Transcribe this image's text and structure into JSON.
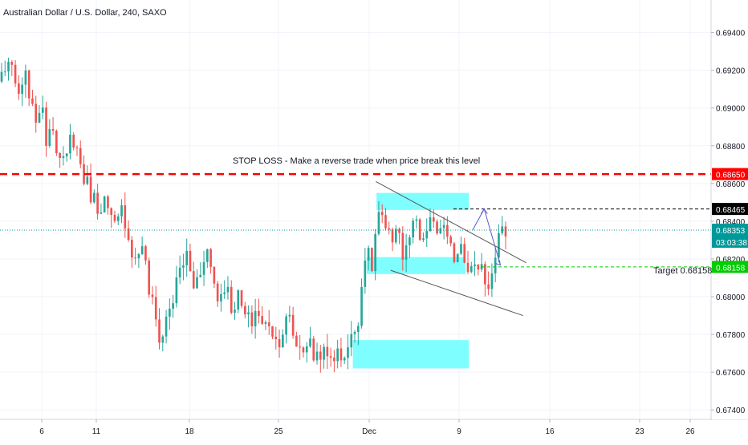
{
  "header": {
    "title": "Australian Dollar / U.S. Dollar, 240, SAXO"
  },
  "chart_data": {
    "type": "candlestick",
    "title": "Australian Dollar / U.S. Dollar, 240, SAXO",
    "symbol": "AUDUSD",
    "timeframe": "240",
    "source": "SAXO",
    "ylim": [
      0.6735,
      0.6953
    ],
    "y_ticks": [
      "0.69400",
      "0.69200",
      "0.69000",
      "0.68800",
      "0.68600",
      "0.68400",
      "0.68200",
      "0.68000",
      "0.67800",
      "0.67600",
      "0.67400"
    ],
    "x_ticks": [
      "6",
      "11",
      "18",
      "25",
      "Dec",
      "9",
      "16",
      "23",
      "26"
    ],
    "grid": true,
    "colors": {
      "up": "#26a69a",
      "down": "#ef5350",
      "stop": "#ff0000",
      "entry": "#000000",
      "target": "#00cc00",
      "last": "#009999",
      "zone": "#7ffeff",
      "arrow": "#5b5bd6"
    },
    "close_path": [
      0.6918,
      0.6925,
      0.6912,
      0.6905,
      0.6918,
      0.6892,
      0.6902,
      0.6885,
      0.6895,
      0.6872,
      0.6868,
      0.6888,
      0.6875,
      0.6862,
      0.6855,
      0.6848,
      0.6852,
      0.684,
      0.6835,
      0.6848,
      0.683,
      0.6818,
      0.683,
      0.6805,
      0.679,
      0.6775,
      0.6792,
      0.68,
      0.6815,
      0.6822,
      0.6805,
      0.6812,
      0.6828,
      0.6812,
      0.6798,
      0.6808,
      0.6795,
      0.68,
      0.679,
      0.6785,
      0.6795,
      0.6782,
      0.6788,
      0.6776,
      0.6782,
      0.6789,
      0.6776,
      0.6772,
      0.6777,
      0.6768,
      0.6772,
      0.6766,
      0.677,
      0.6768,
      0.6772,
      0.6778,
      0.6792,
      0.6825,
      0.6815,
      0.6845,
      0.6835,
      0.6828,
      0.6842,
      0.6818,
      0.6832,
      0.6838,
      0.6824,
      0.6843,
      0.6832,
      0.684,
      0.6825,
      0.6822,
      0.683,
      0.6818,
      0.6812,
      0.682,
      0.6806,
      0.6812,
      0.683,
      0.6835
    ],
    "levels": {
      "stop_loss": {
        "value": 0.6865,
        "label": "0.68650",
        "text": "STOP LOSS - Make a reverse trade when price break this level"
      },
      "entry": {
        "value": 0.68465,
        "label": "0.68465"
      },
      "last_price": {
        "value": 0.68353,
        "label": "0.68353",
        "countdown": "03:03:38"
      },
      "target": {
        "value": 0.68158,
        "label": "0.68158",
        "text": "Target 0.68158"
      }
    },
    "zones": [
      {
        "t0": 0.5295,
        "t1": 0.6594,
        "y0": 0.6855,
        "y1": 0.6846
      },
      {
        "t0": 0.5156,
        "t1": 0.6548,
        "y0": 0.6821,
        "y1": 0.6812
      },
      {
        "t0": 0.4962,
        "t1": 0.6594,
        "y0": 0.6777,
        "y1": 0.6762
      }
    ],
    "channel": {
      "upper": [
        [
          0.5286,
          0.6861
        ],
        [
          0.7399,
          0.6818
        ]
      ],
      "lower": [
        [
          0.5494,
          0.6814
        ],
        [
          0.7356,
          0.679
        ]
      ]
    },
    "projection": [
      [
        0.6647,
        0.68353
      ],
      [
        0.6809,
        0.68465
      ],
      [
        0.7036,
        0.68168
      ]
    ]
  }
}
